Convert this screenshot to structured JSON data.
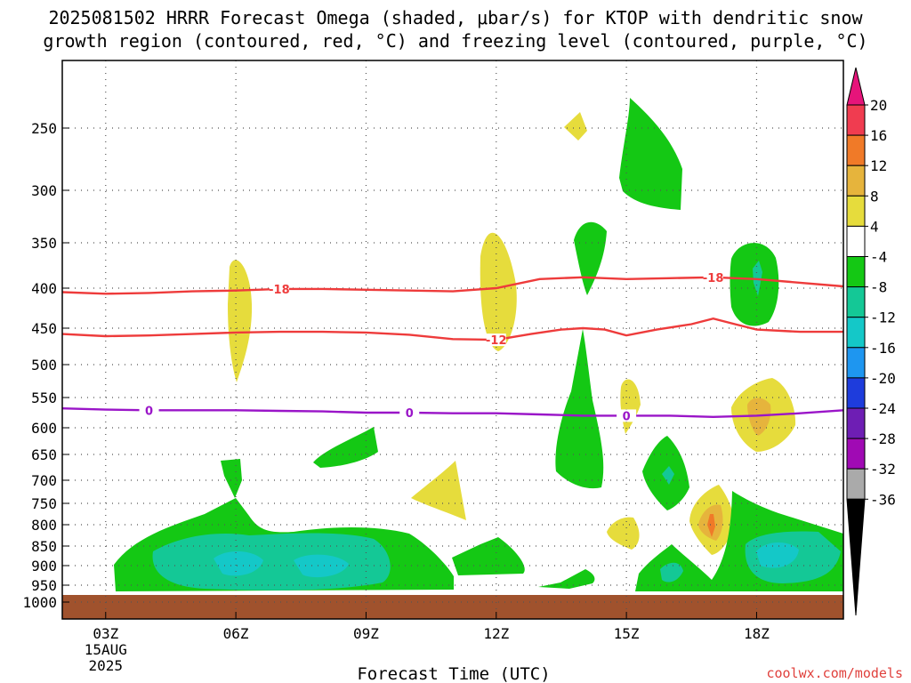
{
  "chart_data": {
    "type": "contour-timeheight",
    "title_lines": [
      "2025081502 HRRR Forecast Omega (shaded, μbar/s) for KTOP with dendritic snow",
      "growth region (contoured, red, °C) and freezing level (contoured, purple, °C)"
    ],
    "xlabel": "Forecast Time (UTC)",
    "x_ticks": [
      {
        "hour": 3,
        "label": "03Z",
        "sub": [
          "15AUG",
          "2025"
        ]
      },
      {
        "hour": 6,
        "label": "06Z"
      },
      {
        "hour": 9,
        "label": "09Z"
      },
      {
        "hour": 12,
        "label": "12Z"
      },
      {
        "hour": 15,
        "label": "15Z"
      },
      {
        "hour": 18,
        "label": "18Z"
      }
    ],
    "xlim": [
      2,
      20
    ],
    "y_ticks": [
      250,
      300,
      350,
      400,
      450,
      500,
      550,
      600,
      650,
      700,
      750,
      800,
      850,
      900,
      950,
      1000
    ],
    "ylabel": "",
    "credit": "coolwx.com/models",
    "colors": {
      "ground": "#a0522d",
      "snow_growth_line": "#ee3b3b",
      "freezing_line": "#9a15c8",
      "grid": "#888888"
    },
    "colorbar": {
      "labels": [
        "20",
        "16",
        "12",
        "8",
        "4",
        "-4",
        "-8",
        "-12",
        "-16",
        "-20",
        "-24",
        "-28",
        "-32",
        "-36"
      ],
      "colors": [
        "#f03c50",
        "#f07a28",
        "#e6b43c",
        "#e6dc3c",
        "#ffffff",
        "#14c814",
        "#14c896",
        "#14c8c8",
        "#1e96f0",
        "#1e3cdc",
        "#6e1eb4",
        "#a00ab4",
        "#aaaaaa"
      ],
      "top_color": "#e6147a",
      "bottom_color": "#000000"
    },
    "contours": [
      {
        "name": "-18 °C",
        "label": "-18",
        "kind": "snow",
        "points": [
          [
            2.0,
            405
          ],
          [
            3.0,
            407
          ],
          [
            4.0,
            406
          ],
          [
            5.0,
            404
          ],
          [
            6.0,
            403
          ],
          [
            7.0,
            401
          ],
          [
            8.0,
            401
          ],
          [
            9.0,
            402
          ],
          [
            10.0,
            403
          ],
          [
            11.0,
            404
          ],
          [
            12.0,
            400
          ],
          [
            13.0,
            390
          ],
          [
            14.0,
            388
          ],
          [
            15.0,
            390
          ],
          [
            16.0,
            389
          ],
          [
            17.0,
            388
          ],
          [
            18.0,
            390
          ],
          [
            19.0,
            394
          ],
          [
            20.0,
            398
          ]
        ],
        "label_at": [
          [
            7.0,
            401
          ],
          [
            17.0,
            388
          ]
        ]
      },
      {
        "name": "-12 °C",
        "label": "-12",
        "kind": "snow",
        "points": [
          [
            2.0,
            458
          ],
          [
            3.0,
            461
          ],
          [
            4.0,
            460
          ],
          [
            5.0,
            458
          ],
          [
            6.0,
            456
          ],
          [
            7.0,
            455
          ],
          [
            8.0,
            455
          ],
          [
            9.0,
            456
          ],
          [
            10.0,
            459
          ],
          [
            11.0,
            465
          ],
          [
            12.0,
            466
          ],
          [
            12.8,
            458
          ],
          [
            13.5,
            452
          ],
          [
            14.0,
            450
          ],
          [
            14.5,
            452
          ],
          [
            15.0,
            460
          ],
          [
            15.7,
            452
          ],
          [
            16.5,
            445
          ],
          [
            17.0,
            438
          ],
          [
            17.5,
            445
          ],
          [
            18.0,
            452
          ],
          [
            19.0,
            455
          ],
          [
            20.0,
            455
          ]
        ],
        "label_at": [
          [
            12.0,
            466
          ]
        ]
      },
      {
        "name": "0 °C",
        "label": "0",
        "kind": "freeze",
        "points": [
          [
            2.0,
            568
          ],
          [
            3.0,
            570
          ],
          [
            4.0,
            571
          ],
          [
            5.0,
            571
          ],
          [
            6.0,
            571
          ],
          [
            7.0,
            572
          ],
          [
            8.0,
            573
          ],
          [
            9.0,
            575
          ],
          [
            10.0,
            575
          ],
          [
            11.0,
            576
          ],
          [
            12.0,
            576
          ],
          [
            13.0,
            578
          ],
          [
            14.0,
            580
          ],
          [
            15.0,
            580
          ],
          [
            16.0,
            580
          ],
          [
            17.0,
            582
          ],
          [
            18.0,
            580
          ],
          [
            19.0,
            576
          ],
          [
            20.0,
            571
          ]
        ],
        "label_at": [
          [
            4.0,
            571
          ],
          [
            10.0,
            575
          ],
          [
            15.0,
            580
          ]
        ]
      }
    ]
  }
}
